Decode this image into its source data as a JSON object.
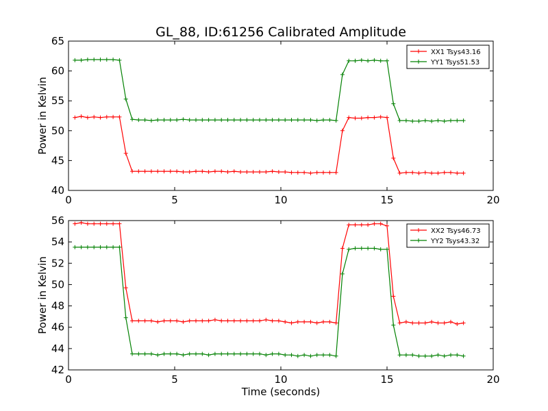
{
  "chart_data": [
    {
      "type": "line",
      "title": "GL_88, ID:61256 Calibrated Amplitude",
      "xlabel": "",
      "ylabel": "Power in Kelvin",
      "xlim": [
        0,
        20
      ],
      "ylim": [
        40,
        65
      ],
      "xticks": [
        0,
        5,
        10,
        15,
        20
      ],
      "yticks": [
        40,
        45,
        50,
        55,
        60,
        65
      ],
      "legend_position": "top-right",
      "grid": false,
      "series": [
        {
          "name": "XX1 Tsys43.16",
          "color": "#ff0000",
          "x": [
            0.3,
            0.6,
            0.9,
            1.2,
            1.5,
            1.8,
            2.1,
            2.4,
            2.7,
            3.0,
            3.3,
            3.6,
            3.9,
            4.2,
            4.5,
            4.8,
            5.1,
            5.4,
            5.7,
            6.0,
            6.3,
            6.6,
            6.9,
            7.2,
            7.5,
            7.8,
            8.1,
            8.4,
            8.7,
            9.0,
            9.3,
            9.6,
            9.9,
            10.2,
            10.5,
            10.8,
            11.1,
            11.4,
            11.7,
            12.0,
            12.3,
            12.6,
            12.9,
            13.2,
            13.5,
            13.8,
            14.1,
            14.4,
            14.7,
            15.0,
            15.3,
            15.6,
            15.9,
            16.2,
            16.5,
            16.8,
            17.1,
            17.4,
            17.7,
            18.0,
            18.3,
            18.6
          ],
          "values": [
            52.2,
            52.4,
            52.2,
            52.3,
            52.2,
            52.3,
            52.3,
            52.3,
            46.2,
            43.2,
            43.2,
            43.2,
            43.2,
            43.2,
            43.2,
            43.2,
            43.2,
            43.1,
            43.1,
            43.2,
            43.2,
            43.1,
            43.2,
            43.2,
            43.1,
            43.2,
            43.1,
            43.1,
            43.1,
            43.1,
            43.1,
            43.2,
            43.1,
            43.1,
            43.0,
            43.0,
            43.0,
            42.9,
            43.0,
            43.0,
            43.0,
            43.0,
            50.0,
            52.2,
            52.1,
            52.1,
            52.2,
            52.2,
            52.3,
            52.2,
            45.4,
            42.9,
            43.0,
            43.0,
            42.9,
            43.0,
            42.9,
            42.9,
            43.0,
            43.0,
            42.9,
            42.9
          ]
        },
        {
          "name": "YY1 Tsys51.53",
          "color": "#008000",
          "x": [
            0.3,
            0.6,
            0.9,
            1.2,
            1.5,
            1.8,
            2.1,
            2.4,
            2.7,
            3.0,
            3.3,
            3.6,
            3.9,
            4.2,
            4.5,
            4.8,
            5.1,
            5.4,
            5.7,
            6.0,
            6.3,
            6.6,
            6.9,
            7.2,
            7.5,
            7.8,
            8.1,
            8.4,
            8.7,
            9.0,
            9.3,
            9.6,
            9.9,
            10.2,
            10.5,
            10.8,
            11.1,
            11.4,
            11.7,
            12.0,
            12.3,
            12.6,
            12.9,
            13.2,
            13.5,
            13.8,
            14.1,
            14.4,
            14.7,
            15.0,
            15.3,
            15.6,
            15.9,
            16.2,
            16.5,
            16.8,
            17.1,
            17.4,
            17.7,
            18.0,
            18.3,
            18.6
          ],
          "values": [
            61.8,
            61.8,
            61.9,
            61.9,
            61.9,
            61.9,
            61.9,
            61.8,
            55.3,
            51.9,
            51.8,
            51.8,
            51.7,
            51.8,
            51.8,
            51.8,
            51.8,
            51.9,
            51.8,
            51.8,
            51.8,
            51.8,
            51.8,
            51.8,
            51.8,
            51.8,
            51.8,
            51.8,
            51.8,
            51.8,
            51.8,
            51.8,
            51.8,
            51.8,
            51.8,
            51.8,
            51.8,
            51.8,
            51.7,
            51.8,
            51.8,
            51.7,
            59.4,
            61.7,
            61.7,
            61.8,
            61.7,
            61.8,
            61.7,
            61.7,
            54.5,
            51.7,
            51.7,
            51.6,
            51.6,
            51.7,
            51.6,
            51.7,
            51.6,
            51.7,
            51.7,
            51.7
          ]
        }
      ]
    },
    {
      "type": "line",
      "title": "",
      "xlabel": "Time (seconds)",
      "ylabel": "Power in Kelvin",
      "xlim": [
        0,
        20
      ],
      "ylim": [
        42,
        56
      ],
      "xticks": [
        0,
        5,
        10,
        15,
        20
      ],
      "yticks": [
        42,
        44,
        46,
        48,
        50,
        52,
        54,
        56
      ],
      "legend_position": "top-right",
      "grid": false,
      "series": [
        {
          "name": "XX2 Tsys46.73",
          "color": "#ff0000",
          "x": [
            0.3,
            0.6,
            0.9,
            1.2,
            1.5,
            1.8,
            2.1,
            2.4,
            2.7,
            3.0,
            3.3,
            3.6,
            3.9,
            4.2,
            4.5,
            4.8,
            5.1,
            5.4,
            5.7,
            6.0,
            6.3,
            6.6,
            6.9,
            7.2,
            7.5,
            7.8,
            8.1,
            8.4,
            8.7,
            9.0,
            9.3,
            9.6,
            9.9,
            10.2,
            10.5,
            10.8,
            11.1,
            11.4,
            11.7,
            12.0,
            12.3,
            12.6,
            12.9,
            13.2,
            13.5,
            13.8,
            14.1,
            14.4,
            14.7,
            15.0,
            15.3,
            15.6,
            15.9,
            16.2,
            16.5,
            16.8,
            17.1,
            17.4,
            17.7,
            18.0,
            18.3,
            18.6
          ],
          "values": [
            55.7,
            55.8,
            55.7,
            55.7,
            55.7,
            55.7,
            55.7,
            55.7,
            49.7,
            46.6,
            46.6,
            46.6,
            46.6,
            46.5,
            46.6,
            46.6,
            46.6,
            46.5,
            46.6,
            46.6,
            46.6,
            46.6,
            46.7,
            46.6,
            46.6,
            46.6,
            46.6,
            46.6,
            46.6,
            46.6,
            46.7,
            46.6,
            46.6,
            46.5,
            46.4,
            46.5,
            46.5,
            46.5,
            46.4,
            46.5,
            46.5,
            46.4,
            53.4,
            55.6,
            55.6,
            55.6,
            55.6,
            55.7,
            55.7,
            55.5,
            48.9,
            46.4,
            46.5,
            46.4,
            46.4,
            46.4,
            46.5,
            46.4,
            46.4,
            46.5,
            46.3,
            46.4
          ]
        },
        {
          "name": "YY2 Tsys43.32",
          "color": "#008000",
          "x": [
            0.3,
            0.6,
            0.9,
            1.2,
            1.5,
            1.8,
            2.1,
            2.4,
            2.7,
            3.0,
            3.3,
            3.6,
            3.9,
            4.2,
            4.5,
            4.8,
            5.1,
            5.4,
            5.7,
            6.0,
            6.3,
            6.6,
            6.9,
            7.2,
            7.5,
            7.8,
            8.1,
            8.4,
            8.7,
            9.0,
            9.3,
            9.6,
            9.9,
            10.2,
            10.5,
            10.8,
            11.1,
            11.4,
            11.7,
            12.0,
            12.3,
            12.6,
            12.9,
            13.2,
            13.5,
            13.8,
            14.1,
            14.4,
            14.7,
            15.0,
            15.3,
            15.6,
            15.9,
            16.2,
            16.5,
            16.8,
            17.1,
            17.4,
            17.7,
            18.0,
            18.3,
            18.6
          ],
          "values": [
            53.5,
            53.5,
            53.5,
            53.5,
            53.5,
            53.5,
            53.5,
            53.5,
            46.9,
            43.5,
            43.5,
            43.5,
            43.5,
            43.4,
            43.5,
            43.5,
            43.5,
            43.4,
            43.5,
            43.5,
            43.5,
            43.4,
            43.5,
            43.5,
            43.5,
            43.5,
            43.5,
            43.5,
            43.5,
            43.5,
            43.4,
            43.5,
            43.5,
            43.4,
            43.4,
            43.3,
            43.4,
            43.3,
            43.4,
            43.4,
            43.4,
            43.3,
            51.0,
            53.3,
            53.4,
            53.4,
            53.4,
            53.4,
            53.3,
            53.3,
            46.2,
            43.4,
            43.4,
            43.4,
            43.3,
            43.3,
            43.3,
            43.4,
            43.3,
            43.4,
            43.4,
            43.3
          ]
        }
      ]
    }
  ]
}
